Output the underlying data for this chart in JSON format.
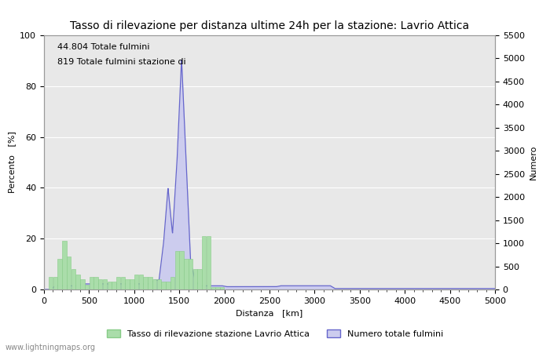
{
  "title": "Tasso di rilevazione per distanza ultime 24h per la stazione: Lavrio Attica",
  "xlabel": "Distanza   [km]",
  "ylabel_left": "Percento   [%]",
  "ylabel_right": "Numero",
  "annotation_line1": "44.804 Totale fulmini",
  "annotation_line2": "819 Totale fulmini stazione di",
  "xlim": [
    0,
    5000
  ],
  "ylim_left": [
    0,
    100
  ],
  "ylim_right": [
    0,
    5500
  ],
  "legend_green": "Tasso di rilevazione stazione Lavrio Attica",
  "legend_blue": "Numero totale fulmini",
  "watermark": "www.lightningmaps.org",
  "bar_color": "#aaddaa",
  "bar_edge_color": "#88cc88",
  "fill_color": "#ccccee",
  "line_color": "#6666cc",
  "plot_bg_color": "#e8e8e8",
  "fig_bg_color": "#ffffff",
  "title_fontsize": 10,
  "label_fontsize": 8,
  "tick_fontsize": 8,
  "grid_color": "#ffffff",
  "xticks": [
    0,
    500,
    1000,
    1500,
    2000,
    2500,
    3000,
    3500,
    4000,
    4500,
    5000
  ],
  "yticks_left": [
    0,
    20,
    40,
    60,
    80,
    100
  ],
  "yticks_right": [
    0,
    500,
    1000,
    1500,
    2000,
    2500,
    3000,
    3500,
    4000,
    4500,
    5000,
    5500
  ]
}
